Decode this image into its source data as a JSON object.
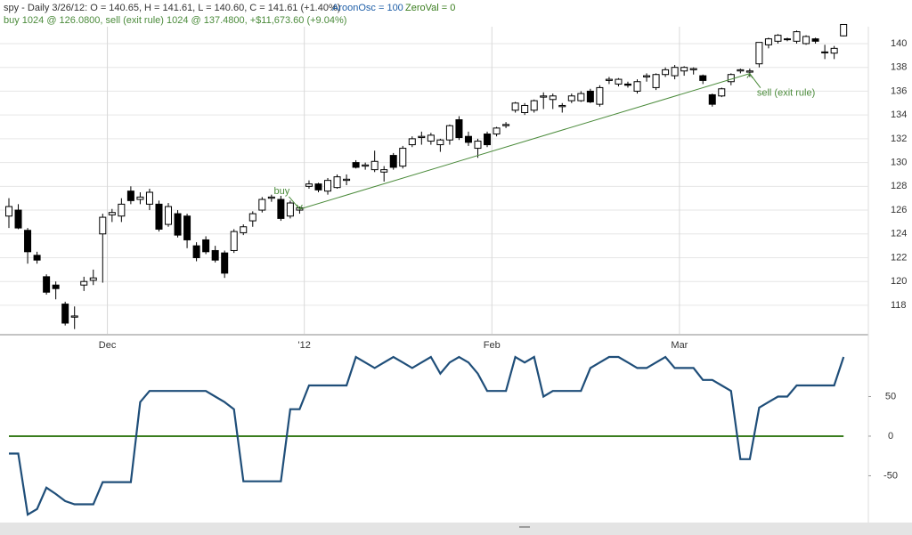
{
  "header": {
    "quote": "spy - Daily 3/26/12:  O = 140.65,  H = 141.61,  L = 140.60,  C = 141.61 (+1.40%)",
    "indicator": "AroonOsc = 100",
    "zero": "ZeroVal = 0",
    "trade": "buy 1024 @ 126.0800, sell (exit rule) 1024 @ 137.4800, +$11,673.60 (+9.04%)"
  },
  "chart_data": [
    {
      "type": "candlestick",
      "categories": [
        null,
        null,
        null,
        null,
        null,
        null,
        null,
        null,
        null,
        null,
        null,
        "Dec",
        null,
        null,
        null,
        null,
        null,
        null,
        null,
        null,
        null,
        null,
        null,
        null,
        null,
        null,
        null,
        null,
        null,
        null,
        null,
        null,
        "'12",
        null,
        null,
        null,
        null,
        null,
        null,
        null,
        null,
        null,
        null,
        null,
        null,
        null,
        null,
        null,
        null,
        null,
        null,
        null,
        "Feb",
        null,
        null,
        null,
        null,
        null,
        null,
        null,
        null,
        null,
        null,
        null,
        null,
        null,
        null,
        null,
        null,
        null,
        null,
        null,
        "Mar",
        null,
        null,
        null,
        null,
        null,
        null,
        null,
        null,
        null,
        null,
        null,
        null,
        null,
        null,
        null,
        null,
        null
      ],
      "open": [
        125.5,
        126,
        124.3,
        122.2,
        120.4,
        119.7,
        118.1,
        117,
        119.7,
        120.1,
        124,
        125.6,
        125.5,
        127.6,
        126.9,
        126.5,
        126.5,
        124.8,
        125.7,
        125.5,
        123,
        123.5,
        122.6,
        122.4,
        122.6,
        124.1,
        125.1,
        126,
        127,
        126.9,
        125.5,
        126,
        128,
        128.2,
        127.6,
        127.9,
        128.5,
        130,
        129.7,
        129.4,
        129.2,
        130.6,
        129.7,
        131.5,
        132.1,
        131.8,
        131.5,
        131.9,
        133.6,
        132.2,
        131.2,
        132.4,
        132.4,
        133.1,
        134.4,
        134.2,
        134.4,
        135.5,
        135.3,
        134.7,
        135.2,
        135.2,
        136,
        134.9,
        136.9,
        136.6,
        136.6,
        136,
        137.2,
        136.3,
        137.4,
        137.3,
        137.7,
        137.8,
        137.3,
        135.7,
        135.6,
        136.8,
        137.7,
        137.6,
        138.3,
        139.9,
        140.2,
        140.4,
        140.2,
        140,
        140.4,
        139.3,
        139.2,
        140.65
      ],
      "high": [
        127,
        126.5,
        124.5,
        122.5,
        120.6,
        120,
        118.3,
        117.9,
        120.4,
        121,
        125.7,
        126.1,
        127,
        128,
        127.5,
        127.8,
        126.8,
        126.6,
        126,
        125.7,
        123.3,
        123.8,
        123,
        122.6,
        124.4,
        124.8,
        125.9,
        127.1,
        127.3,
        127.2,
        126.8,
        126.3,
        128.5,
        128.3,
        128.7,
        129,
        129,
        130.2,
        130,
        131,
        129.7,
        130.8,
        131.4,
        132.2,
        132.6,
        132.5,
        132,
        133.2,
        133.9,
        132.6,
        132,
        132.6,
        133,
        133.4,
        135.1,
        135,
        135.3,
        135.9,
        135.8,
        135,
        135.8,
        136,
        136.2,
        136.5,
        137.2,
        137.1,
        136.8,
        137,
        137.5,
        137.5,
        138,
        138.2,
        138.1,
        138,
        137.4,
        135.8,
        136.3,
        137.5,
        137.9,
        137.9,
        140.1,
        140.5,
        140.8,
        140.5,
        141.1,
        140.7,
        140.5,
        139.9,
        139.8,
        141.61
      ],
      "low": [
        124.5,
        124.4,
        121.5,
        121.5,
        118.9,
        118.5,
        116.3,
        116,
        119.2,
        119.7,
        119.9,
        125,
        125,
        126.5,
        126.5,
        126,
        124.2,
        124.6,
        123.7,
        122.8,
        121.7,
        122.3,
        121.6,
        120.3,
        122.4,
        123.9,
        124.6,
        125.8,
        126.7,
        125.1,
        125.3,
        125.7,
        127.8,
        127.5,
        127.3,
        127.8,
        128.1,
        129.5,
        129.4,
        129.2,
        128.4,
        129.4,
        129.5,
        131.3,
        131.5,
        131.5,
        130.9,
        131.5,
        131.9,
        131.4,
        130.4,
        131.3,
        132.2,
        132.9,
        134.2,
        134,
        134.2,
        134.5,
        134.5,
        134.2,
        135,
        135.1,
        135,
        134.7,
        136.6,
        136.4,
        136.3,
        135.8,
        136.8,
        136.1,
        137.2,
        137,
        137.3,
        137.4,
        136.6,
        134.7,
        135.5,
        136.5,
        137.5,
        137.2,
        138,
        139.6,
        140,
        140.2,
        140,
        139.9,
        140,
        138.7,
        138.7,
        140.6
      ],
      "close": [
        126.3,
        124.5,
        122.5,
        121.8,
        119.1,
        119.4,
        116.5,
        117.1,
        120,
        120.3,
        125.4,
        125.8,
        126.5,
        126.8,
        127.1,
        127.5,
        124.4,
        126.3,
        123.9,
        123.5,
        122,
        122.5,
        121.8,
        120.7,
        124.2,
        124.6,
        125.7,
        126.9,
        127.1,
        125.3,
        126.6,
        126.2,
        128.2,
        127.7,
        128.5,
        128.8,
        128.6,
        129.6,
        129.8,
        130.1,
        129.4,
        129.6,
        131.2,
        132,
        132.2,
        132.3,
        131.9,
        133.1,
        132.1,
        131.7,
        131.8,
        131.5,
        132.9,
        133.2,
        135,
        134.8,
        135.2,
        135.6,
        135.6,
        134.8,
        135.6,
        135.8,
        135.1,
        136.3,
        137,
        137,
        136.5,
        136.8,
        137.3,
        137.4,
        137.8,
        138,
        138,
        137.9,
        136.9,
        134.9,
        136.2,
        137.4,
        137.8,
        137.7,
        140.1,
        140.4,
        140.7,
        140.4,
        141,
        140.6,
        140.2,
        139.3,
        139.6,
        141.61
      ],
      "up_color": "#ffffff",
      "down_color": "#000000",
      "outline_color": "#000000",
      "ylim": [
        115.6,
        142.17
      ],
      "yticks": [
        118,
        120,
        122,
        124,
        126,
        128,
        130,
        132,
        134,
        136,
        138,
        140
      ],
      "grid": true,
      "trade": {
        "entry_index": 31,
        "entry_price": 126.08,
        "exit_index": 79,
        "exit_price": 137.48,
        "color": "#4b8b3b"
      },
      "annotations": [
        {
          "text": "buy",
          "at": 31,
          "value": 126.08
        },
        {
          "text": "sell (exit rule)",
          "at": 79,
          "value": 137.48
        }
      ]
    },
    {
      "type": "line",
      "series": [
        {
          "name": "AroonOsc",
          "color": "#1f4e79",
          "values": [
            -22,
            -22,
            -99,
            -92,
            -65,
            -73,
            -82,
            -86,
            -86,
            -86,
            -58,
            -58,
            -58,
            -58,
            43,
            57,
            57,
            57,
            57,
            57,
            57,
            57,
            50,
            43,
            34,
            -57,
            -57,
            -57,
            -57,
            -57,
            34,
            34,
            64,
            64,
            64,
            64,
            64,
            100,
            93,
            86,
            93,
            100,
            93,
            86,
            93,
            100,
            79,
            93,
            100,
            93,
            79,
            57,
            57,
            57,
            100,
            93,
            100,
            50,
            57,
            57,
            57,
            57,
            86,
            93,
            100,
            100,
            93,
            86,
            86,
            93,
            100,
            86,
            86,
            86,
            71,
            71,
            64,
            57,
            -29,
            -29,
            36,
            43,
            50,
            50,
            64,
            64,
            64,
            64,
            64,
            100
          ]
        }
      ],
      "reference_line": {
        "value": 0,
        "color": "#3a7d1e"
      },
      "ylim": [
        -107.9,
        125.8
      ],
      "yticks": [
        -50,
        0,
        50
      ]
    }
  ]
}
